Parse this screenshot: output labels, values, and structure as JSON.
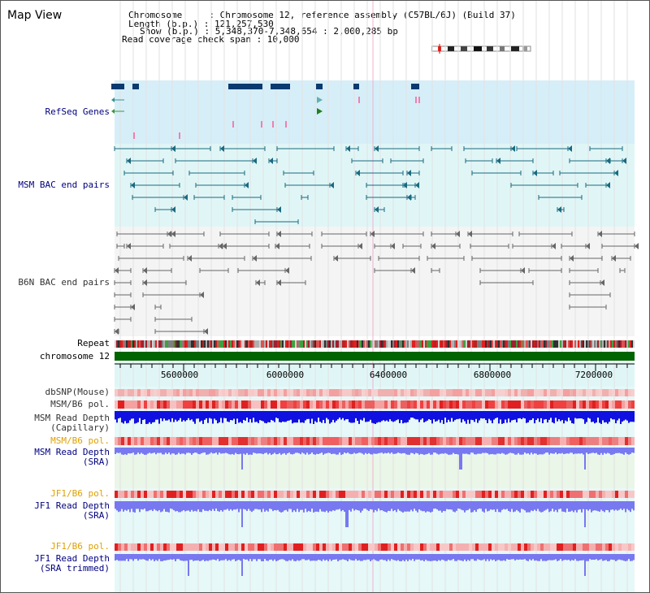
{
  "view_title": "Map View",
  "header": {
    "chromosome_label": "Chromosome     : Chromosome 12, reference assembly (C57BL/6J) (Build 37)",
    "length_label": "Length (b.p.) : 121,257,530",
    "show_label": "Show (b.p.) : 5,348,370-7,348,654 : 2,000,285 bp",
    "span_label": "Read coverage check span : 10,000"
  },
  "tracks": {
    "refseq": "RefSeq Genes",
    "msm_bac": "MSM BAC end pairs",
    "b6n_bac": "B6N BAC end pairs",
    "repeat": "Repeat",
    "chromosome": "chromosome 12",
    "dbsnp": "dbSNP(Mouse)",
    "msm_b6_pol": "MSM/B6 pol.",
    "msm_depth_cap_1": "MSM Read Depth",
    "msm_depth_cap_2": "(Capillary)",
    "msm_b6_pol2": "MSM/B6 pol.",
    "msm_depth_sra_1": "MSM Read Depth",
    "msm_depth_sra_2": "(SRA)",
    "jf1_pol_a": "JF1/B6 pol.",
    "jf1_depth_sra_1": "JF1 Read Depth",
    "jf1_depth_sra_2": "(SRA)",
    "jf1_pol_b": "JF1/B6 pol.",
    "jf1_depth_trim_1": "JF1 Read Depth",
    "jf1_depth_trim_2": "(SRA trimmed)"
  },
  "axis": {
    "ticks": [
      "5600000",
      "6000000",
      "6400000",
      "6800000",
      "7200000"
    ]
  },
  "colors": {
    "label_blue": "#000080",
    "label_orange": "#e0a000",
    "teal": "#1a6a80",
    "gene_navy": "#0a3a70",
    "chrom_green": "#006400",
    "depth_blue": "#1010e0",
    "depth_light": "#7878f0",
    "pol_red": "#e02020"
  }
}
